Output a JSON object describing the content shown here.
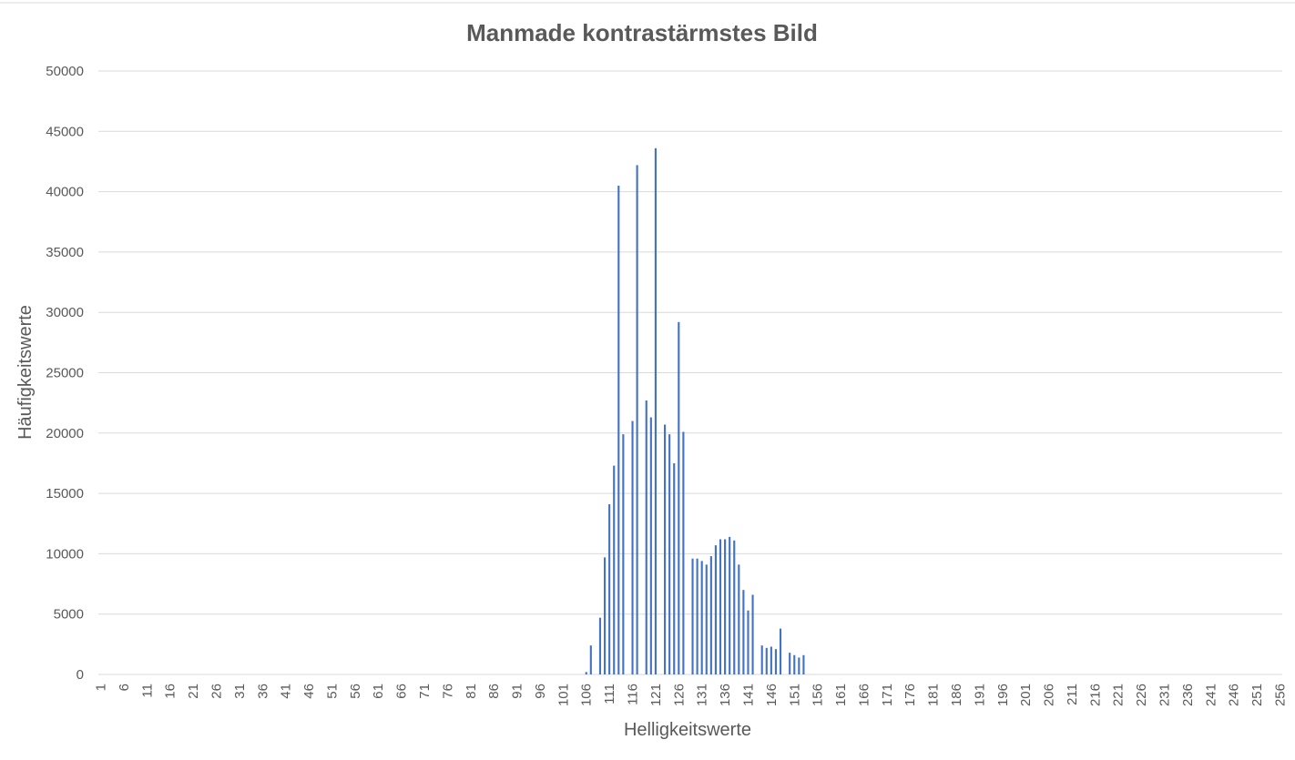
{
  "chart_data": {
    "type": "bar",
    "title": "Manmade kontrastärmstes Bild",
    "xlabel": "Helligkeitswerte",
    "ylabel": "Häufigkeitswerte",
    "ylim": [
      0,
      50000
    ],
    "yticks": [
      0,
      5000,
      10000,
      15000,
      20000,
      25000,
      30000,
      35000,
      40000,
      45000,
      50000
    ],
    "x_start": 1,
    "x_end": 256,
    "x_tick_step": 5,
    "grid": true,
    "legend": "none",
    "bar_color": "#4472c4",
    "categories": [
      106,
      107,
      108,
      109,
      110,
      111,
      112,
      113,
      114,
      115,
      116,
      117,
      118,
      119,
      120,
      121,
      122,
      123,
      124,
      125,
      126,
      127,
      128,
      129,
      130,
      131,
      132,
      133,
      134,
      135,
      136,
      137,
      138,
      139,
      140,
      141,
      142,
      143,
      144,
      145,
      146,
      147,
      148,
      149,
      150,
      151,
      152,
      153,
      154
    ],
    "values": [
      200,
      2400,
      0,
      4700,
      9700,
      14100,
      17300,
      40500,
      19900,
      0,
      21000,
      42200,
      0,
      22700,
      21300,
      43600,
      0,
      20700,
      19900,
      17500,
      29200,
      20100,
      0,
      9600,
      9600,
      9400,
      9100,
      9800,
      10700,
      11200,
      11200,
      11400,
      11100,
      9100,
      7000,
      5300,
      6600,
      0,
      2400,
      2200,
      2300,
      2100,
      3800,
      0,
      1800,
      1600,
      1400,
      1600,
      0
    ]
  }
}
